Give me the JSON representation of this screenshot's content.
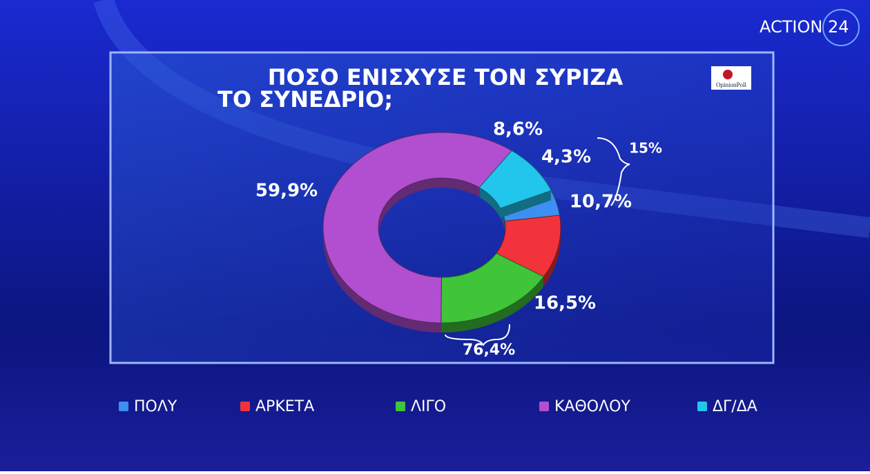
{
  "broadcaster": "ACTION 24",
  "pollster": "OpinionPoll",
  "chart_data": {
    "type": "donut",
    "title": [
      "ΠΟΣΟ ΕΝΙΣΧΥΣΕ ΤΟΝ ΣΥΡΙΖΑ",
      "ΤΟ ΣΥΝΕΔΡΙΟ;"
    ],
    "categories": [
      "ΠΟΛΥ",
      "ΑΡΚΕΤΑ",
      "ΛΙΓΟ",
      "ΚΑΘΟΛΟΥ",
      "ΔΓ/ΔΑ"
    ],
    "values": [
      4.3,
      10.7,
      16.5,
      59.9,
      8.6
    ],
    "value_labels": [
      "4,3%",
      "10,7%",
      "16,5%",
      "59,9%",
      "8,6%"
    ],
    "colors": [
      "#3d8ff2",
      "#f2333b",
      "#3fc43a",
      "#b24fd0",
      "#22c5eb"
    ],
    "annotations": [
      "15%",
      "76,4%"
    ]
  }
}
